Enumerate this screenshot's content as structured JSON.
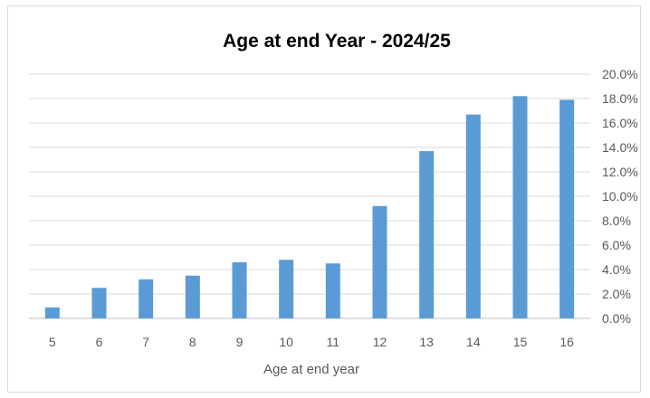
{
  "chart_data": {
    "type": "bar",
    "title": "Age at end Year - 2024/25",
    "xlabel": "Age at end year",
    "ylabel": "",
    "categories": [
      "5",
      "6",
      "7",
      "8",
      "9",
      "10",
      "11",
      "12",
      "13",
      "14",
      "15",
      "16"
    ],
    "values": [
      0.9,
      2.5,
      3.2,
      3.5,
      4.6,
      4.8,
      4.5,
      9.2,
      13.7,
      16.7,
      18.2,
      17.9
    ],
    "ylim": [
      0,
      20
    ],
    "yticks": [
      "0.0%",
      "2.0%",
      "4.0%",
      "6.0%",
      "8.0%",
      "10.0%",
      "12.0%",
      "14.0%",
      "16.0%",
      "18.0%",
      "20.0%"
    ],
    "y_axis_side": "right",
    "grid": true,
    "legend": "none",
    "bar_color": "#5b9bd5"
  }
}
